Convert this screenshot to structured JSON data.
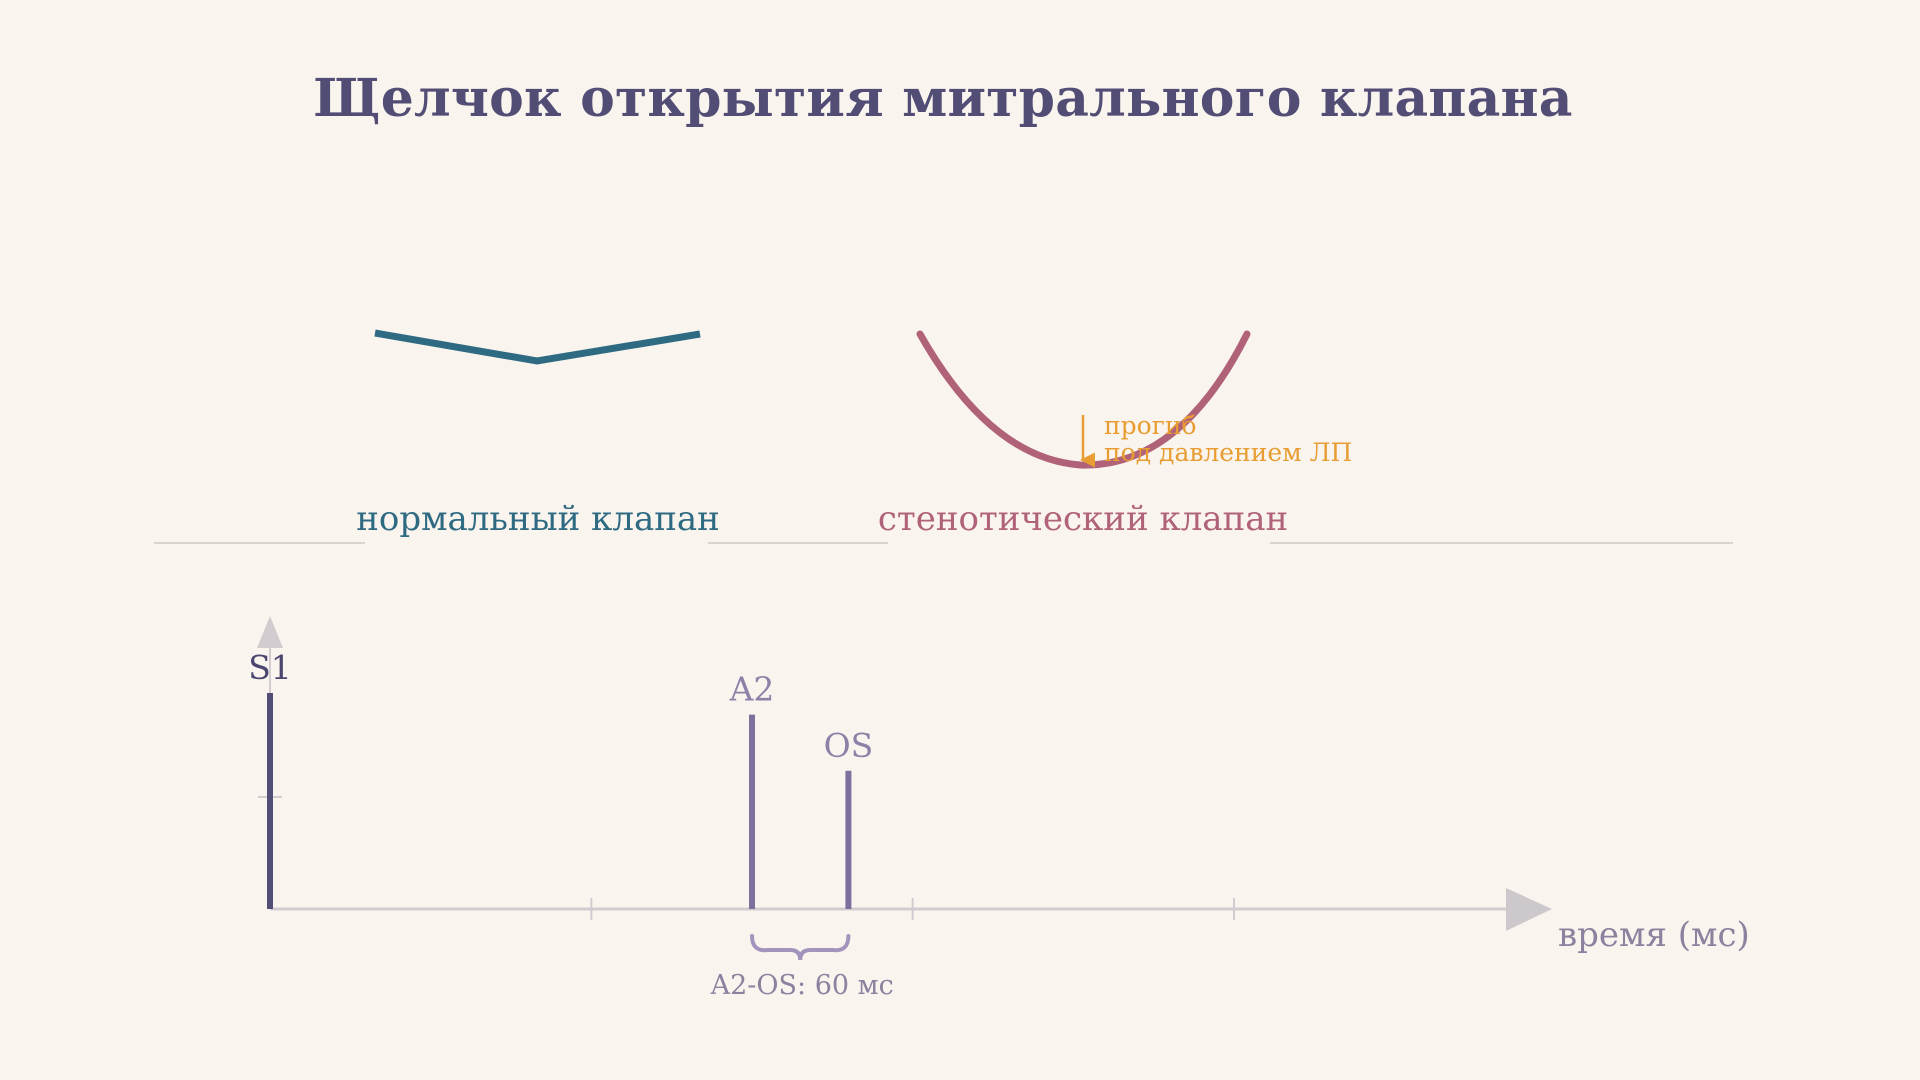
{
  "title": "Щелчок открытия митрального клапана",
  "colors": {
    "background": "#faf4ee",
    "title": "#514d75",
    "normal_valve": "#2e6a82",
    "stenotic_valve": "#b06378",
    "annotation": "#e89d33",
    "s1": "#514d75",
    "a2_os": "#7d709c",
    "axis": "#d2ccd0",
    "x_label": "#8c829f"
  },
  "valves": {
    "normal": {
      "label": "нормальный клапан"
    },
    "stenotic": {
      "label": "стенотический клапан",
      "annotation_line1": "прогиб",
      "annotation_line2": "под давлением ЛП"
    }
  },
  "chart_data": {
    "type": "timeline",
    "xlabel": "время (мс)",
    "events": [
      {
        "label": "S1",
        "time_ms": 0,
        "relative_amplitude": 1.0
      },
      {
        "label": "A2",
        "time_ms": 300,
        "relative_amplitude": 0.9
      },
      {
        "label": "OS",
        "time_ms": 360,
        "relative_amplitude": 0.64
      }
    ],
    "interval": {
      "from": "A2",
      "to": "OS",
      "label": "A2-OS: 60 мс",
      "value_ms": 60
    },
    "x_ticks_ms": [
      200,
      400,
      600
    ]
  }
}
